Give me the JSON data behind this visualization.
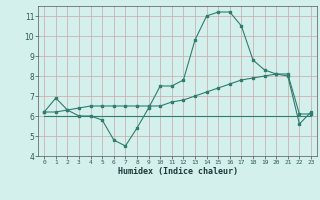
{
  "x": [
    0,
    1,
    2,
    3,
    4,
    5,
    6,
    7,
    8,
    9,
    10,
    11,
    12,
    13,
    14,
    15,
    16,
    17,
    18,
    19,
    20,
    21,
    22,
    23
  ],
  "line1": [
    6.2,
    6.9,
    6.3,
    6.0,
    6.0,
    5.8,
    4.8,
    4.5,
    5.4,
    6.4,
    7.5,
    7.5,
    7.8,
    9.8,
    11.0,
    11.2,
    11.2,
    10.5,
    8.8,
    8.3,
    8.1,
    8.0,
    5.6,
    6.2
  ],
  "line2": [
    6.2,
    6.2,
    6.3,
    6.4,
    6.5,
    6.5,
    6.5,
    6.5,
    6.5,
    6.5,
    6.5,
    6.7,
    6.8,
    7.0,
    7.2,
    7.4,
    7.6,
    7.8,
    7.9,
    8.0,
    8.1,
    8.1,
    6.1,
    6.1
  ],
  "line3": [
    6.0,
    6.0,
    6.0,
    6.0,
    6.0,
    6.0,
    6.0,
    6.0,
    6.0,
    6.0,
    6.0,
    6.0,
    6.0,
    6.0,
    6.0,
    6.0,
    6.0,
    6.0,
    6.0,
    6.0,
    6.0,
    6.0,
    6.0,
    6.0
  ],
  "line_color": "#2e7d6e",
  "bg_color": "#d4f0ec",
  "grid_color": "#c9a8a8",
  "xlabel": "Humidex (Indice chaleur)",
  "xlim": [
    -0.5,
    23.5
  ],
  "ylim": [
    4,
    11.5
  ],
  "yticks": [
    4,
    5,
    6,
    7,
    8,
    9,
    10,
    11
  ],
  "xticks": [
    0,
    1,
    2,
    3,
    4,
    5,
    6,
    7,
    8,
    9,
    10,
    11,
    12,
    13,
    14,
    15,
    16,
    17,
    18,
    19,
    20,
    21,
    22,
    23
  ],
  "xtick_labels": [
    "0",
    "1",
    "2",
    "3",
    "4",
    "5",
    "6",
    "7",
    "8",
    "9",
    "10",
    "11",
    "12",
    "13",
    "14",
    "15",
    "16",
    "17",
    "18",
    "19",
    "20",
    "21",
    "22",
    "23"
  ]
}
